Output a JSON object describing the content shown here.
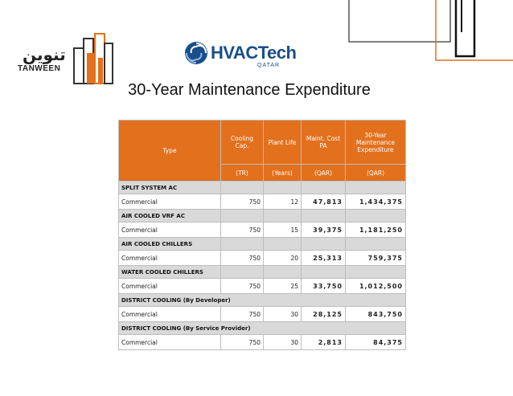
{
  "header": {
    "tanween_logo_ar": "تنوين",
    "tanween_logo_en": "TANWEEN",
    "hvac_logo_main": "HVACTech",
    "hvac_logo_sub": "QATAR",
    "title": "30-Year Maintenance Expenditure"
  },
  "colors": {
    "header_orange": "#e2701d",
    "category_gray": "#d9d9d9",
    "deco_orange": "#e2701d",
    "deco_dark": "#222222"
  },
  "table": {
    "headers": {
      "type": "Type",
      "cooling_cap": "Cooling Cap.",
      "plant_life": "Plant Life",
      "maint_cost": "Maint. Cost PA",
      "expenditure": "30-Year Maintenance Expenditure"
    },
    "units": {
      "cooling_cap": "(TR)",
      "plant_life": "(Years)",
      "maint_cost": "(QAR)",
      "expenditure": "(QAR)"
    },
    "groups": [
      {
        "category": "SPLIT SYSTEM AC",
        "type": "Commercial",
        "cap": "750",
        "life": "12",
        "maint": "47,813",
        "exp": "1,434,375"
      },
      {
        "category": "AIR COOLED VRF AC",
        "type": "Commercial",
        "cap": "750",
        "life": "15",
        "maint": "39,375",
        "exp": "1,181,250"
      },
      {
        "category": "AIR COOLED CHILLERS",
        "type": "Commercial",
        "cap": "750",
        "life": "20",
        "maint": "25,313",
        "exp": "759,375"
      },
      {
        "category": "WATER COOLED CHILLERS",
        "type": "Commercial",
        "cap": "750",
        "life": "25",
        "maint": "33,750",
        "exp": "1,012,500"
      },
      {
        "category": "DISTRICT COOLING (By Developer)",
        "type": "Commercial",
        "cap": "750",
        "life": "30",
        "maint": "28,125",
        "exp": "843,750"
      },
      {
        "category": "DISTRICT COOLING (By Service Provider)",
        "type": "Commercial",
        "cap": "750",
        "life": "30",
        "maint": "2,813",
        "exp": "84,375"
      }
    ]
  }
}
